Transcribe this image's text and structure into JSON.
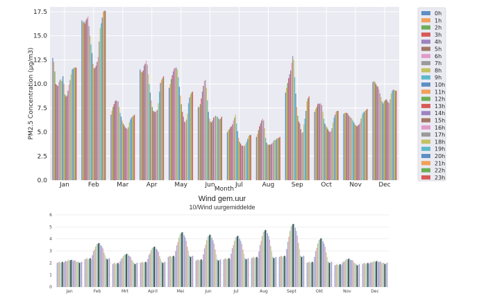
{
  "chart_data": [
    {
      "type": "bar",
      "xlabel": "Month",
      "ylabel": "PM2.5 Concentration (µg/m3)",
      "ylim": [
        0,
        18
      ],
      "yticks": [
        "0.0",
        "2.5",
        "5.0",
        "7.5",
        "10.0",
        "12.5",
        "15.0",
        "17.5"
      ],
      "grid": true,
      "legend_position": "right",
      "categories": [
        "Jan",
        "Feb",
        "Mar",
        "Apr",
        "May",
        "Jun",
        "Jul",
        "Aug",
        "Sep",
        "Oct",
        "Nov",
        "Dec"
      ],
      "series": [
        {
          "name": "0h",
          "values": [
            12.7,
            16.6,
            6.8,
            11.5,
            9.6,
            7.6,
            5.0,
            4.5,
            9.1,
            7.1,
            6.9,
            10.2
          ]
        },
        {
          "name": "1h",
          "values": [
            12.3,
            16.4,
            7.2,
            11.3,
            10.0,
            7.6,
            5.2,
            4.8,
            9.6,
            7.4,
            7.0,
            10.3
          ]
        },
        {
          "name": "2h",
          "values": [
            11.3,
            16.5,
            7.6,
            11.2,
            10.5,
            7.9,
            5.3,
            5.2,
            10.1,
            7.6,
            7.0,
            10.2
          ]
        },
        {
          "name": "3h",
          "values": [
            10.0,
            16.3,
            7.9,
            11.4,
            10.9,
            8.5,
            5.5,
            5.6,
            10.6,
            7.9,
            7.0,
            10.0
          ]
        },
        {
          "name": "4h",
          "values": [
            9.9,
            16.6,
            8.2,
            11.9,
            11.3,
            9.2,
            5.6,
            5.9,
            11.0,
            8.0,
            6.9,
            9.8
          ]
        },
        {
          "name": "5h",
          "values": [
            9.8,
            16.8,
            8.3,
            12.1,
            11.6,
            9.8,
            5.8,
            6.2,
            11.4,
            7.9,
            6.7,
            9.7
          ]
        },
        {
          "name": "6h",
          "values": [
            10.2,
            17.0,
            8.2,
            12.4,
            11.7,
            10.3,
            6.2,
            6.4,
            12.2,
            8.0,
            6.6,
            9.4
          ]
        },
        {
          "name": "7h",
          "values": [
            10.4,
            16.0,
            8.2,
            12.0,
            11.7,
            10.4,
            6.5,
            6.2,
            12.9,
            7.8,
            6.5,
            9.0
          ]
        },
        {
          "name": "8h",
          "values": [
            10.5,
            15.0,
            7.6,
            11.0,
            11.5,
            9.6,
            6.8,
            5.4,
            12.5,
            7.1,
            6.4,
            8.6
          ]
        },
        {
          "name": "9h",
          "values": [
            10.3,
            14.1,
            7.0,
            10.0,
            10.7,
            8.3,
            5.9,
            4.4,
            10.7,
            6.4,
            6.2,
            8.2
          ]
        },
        {
          "name": "10h",
          "values": [
            10.8,
            13.2,
            6.6,
            9.1,
            9.7,
            7.1,
            5.1,
            3.9,
            9.0,
            5.9,
            6.0,
            8.0
          ]
        },
        {
          "name": "11h",
          "values": [
            10.0,
            12.1,
            6.2,
            8.3,
            8.8,
            6.4,
            4.4,
            3.7,
            7.6,
            5.7,
            5.8,
            8.2
          ]
        },
        {
          "name": "12h",
          "values": [
            8.9,
            11.6,
            5.9,
            7.6,
            7.9,
            6.1,
            4.0,
            3.7,
            6.7,
            5.5,
            5.7,
            8.3
          ]
        },
        {
          "name": "13h",
          "values": [
            8.7,
            11.7,
            5.7,
            7.2,
            7.1,
            6.0,
            3.8,
            3.7,
            6.1,
            5.3,
            5.6,
            8.4
          ]
        },
        {
          "name": "14h",
          "values": [
            8.8,
            11.9,
            5.5,
            7.1,
            6.6,
            6.2,
            3.6,
            3.7,
            5.9,
            5.1,
            5.7,
            8.3
          ]
        },
        {
          "name": "15h",
          "values": [
            9.3,
            12.3,
            5.4,
            7.1,
            6.1,
            6.5,
            3.6,
            3.8,
            5.3,
            5.0,
            5.8,
            8.1
          ]
        },
        {
          "name": "16h",
          "values": [
            9.9,
            12.8,
            5.3,
            7.2,
            6.0,
            6.6,
            3.5,
            3.9,
            4.9,
            5.1,
            6.0,
            8.0
          ]
        },
        {
          "name": "17h",
          "values": [
            10.4,
            14.4,
            5.5,
            7.3,
            6.3,
            6.7,
            3.6,
            4.1,
            5.0,
            5.4,
            6.4,
            8.4
          ]
        },
        {
          "name": "18h",
          "values": [
            11.0,
            15.8,
            6.0,
            8.0,
            6.9,
            6.6,
            3.8,
            4.2,
            5.8,
            6.0,
            6.8,
            9.0
          ]
        },
        {
          "name": "19h",
          "values": [
            11.5,
            16.3,
            6.3,
            9.2,
            8.0,
            6.6,
            4.0,
            4.2,
            6.4,
            6.5,
            7.0,
            9.3
          ]
        },
        {
          "name": "20h",
          "values": [
            11.6,
            16.9,
            6.5,
            10.1,
            8.6,
            6.4,
            4.3,
            4.3,
            7.2,
            6.8,
            7.1,
            9.4
          ]
        },
        {
          "name": "21h",
          "values": [
            11.7,
            17.5,
            6.6,
            10.4,
            8.9,
            6.3,
            4.6,
            4.4,
            8.2,
            7.1,
            7.2,
            9.4
          ]
        },
        {
          "name": "22h",
          "values": [
            11.7,
            17.6,
            6.7,
            10.6,
            9.1,
            6.4,
            4.7,
            4.4,
            8.5,
            7.2,
            7.3,
            9.3
          ]
        },
        {
          "name": "23h",
          "values": [
            11.7,
            17.6,
            6.8,
            10.8,
            9.2,
            6.6,
            4.7,
            4.5,
            8.7,
            7.2,
            7.4,
            9.3
          ]
        }
      ],
      "colors": [
        "#5e8fc4",
        "#f0a05a",
        "#6cae58",
        "#d75a56",
        "#9d84c0",
        "#a37866",
        "#e19bc9",
        "#9a9a9a",
        "#c4c161",
        "#5fb9cb"
      ]
    },
    {
      "type": "bar",
      "title": "Wind gem.uur",
      "subtitle": "10/Wind uurgemiddelde",
      "ylim": [
        0,
        6
      ],
      "yticks": [
        "0",
        "1",
        "2",
        "3",
        "4",
        "5",
        "6"
      ],
      "grid": true,
      "categories": [
        "Jan",
        "Feb",
        "Mrt",
        "April",
        "Mei",
        "Jun",
        "Jul",
        "Aug",
        "Sept",
        "Okt",
        "Nov",
        "Dec"
      ],
      "profile": {
        "min": [
          2.0,
          2.3,
          1.9,
          2.0,
          2.5,
          2.2,
          2.3,
          2.4,
          2.5,
          2.0,
          1.8,
          1.9
        ],
        "max": [
          2.2,
          3.6,
          2.7,
          3.3,
          4.5,
          4.3,
          4.2,
          4.7,
          5.2,
          4.0,
          2.3,
          2.1
        ]
      },
      "colors": [
        "#9fb8d8",
        "#e3a8c4",
        "#bfc48a",
        "#cfcfcf",
        "#8fc0b0",
        "#2c3a2c",
        "#a9c9e0",
        "#b99ac9"
      ]
    }
  ]
}
